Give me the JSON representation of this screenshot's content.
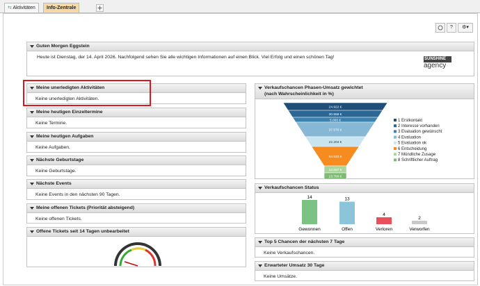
{
  "tabs": [
    "Aktivitäten",
    "Info-Zentrale"
  ],
  "toolbar": {
    "help": "?"
  },
  "welcome": {
    "title": "Guten Morgen Eggstein",
    "text": "Heute ist Dienstag, der 14. April 2026. Nachfolgend sehen Sie alle wichtigen Informationen auf einen Blick. Viel Erfolg und einen schönen Tag!",
    "logo": [
      "SUNSHINE",
      "agency"
    ]
  },
  "left_panels": [
    {
      "title": "Meine unerledigten Aktivitäten",
      "body": "Keine unerledigten Aktivitäten."
    },
    {
      "title": "Meine heutigen Einzeltermine",
      "body": "Keine Termine."
    },
    {
      "title": "Meine heutigen Aufgaben",
      "body": "Keine Aufgaben."
    },
    {
      "title": "Nächste Geburtstage",
      "body": "Keine Geburtstage."
    },
    {
      "title": "Nächste Events",
      "body": "Keine Events in den nächsten 90 Tagen."
    },
    {
      "title": "Meine offenen Tickets (Priorität absteigend)",
      "body": "Keine offenen Tickets."
    },
    {
      "title": "Offene Tickets seit 14 Tagen unbearbeitet"
    }
  ],
  "funnel": {
    "title": "Verkaufschancen Phasen-Umsatz gewichtet",
    "subtitle": "(nach Wahrscheinlichkeit in %)",
    "labels": [
      "24.922 €",
      "30.558 €",
      "5.000 €",
      "37.570 €",
      "22.204 €",
      "54.533 €",
      "12.697 €",
      "13.700 €"
    ],
    "legend": [
      "1 Erstkontakt",
      "2 Interesse vorhanden",
      "3 Evaluation gewünscht",
      "4 Evaluation",
      "5 Evaluation ok",
      "6 Entscheidung",
      "7 Mündliche Zusage",
      "8 Schriftlicher Auftrag"
    ],
    "colors": [
      "#1f4e79",
      "#2a6795",
      "#3b82b0",
      "#86b8d6",
      "#c9e4f1",
      "#f68b1f",
      "#a9d69b",
      "#7dbb72"
    ]
  },
  "status_chart": {
    "type": "bar",
    "title": "Verkaufschancen Status",
    "categories": [
      "Gewonnen",
      "Offen",
      "Verloren",
      "Verworfen"
    ],
    "values": [
      14,
      13,
      4,
      2
    ],
    "colors": [
      "#7cc383",
      "#8cc4d9",
      "#e8505b",
      "#c9c9c9"
    ]
  },
  "right_panels": [
    {
      "title": "Top 5 Chancen der nächsten 7 Tage",
      "body": "Keine Verkaufschancen."
    },
    {
      "title": "Erwarteter Umsatz 30 Tage",
      "body": "Keine Umsätze."
    }
  ]
}
